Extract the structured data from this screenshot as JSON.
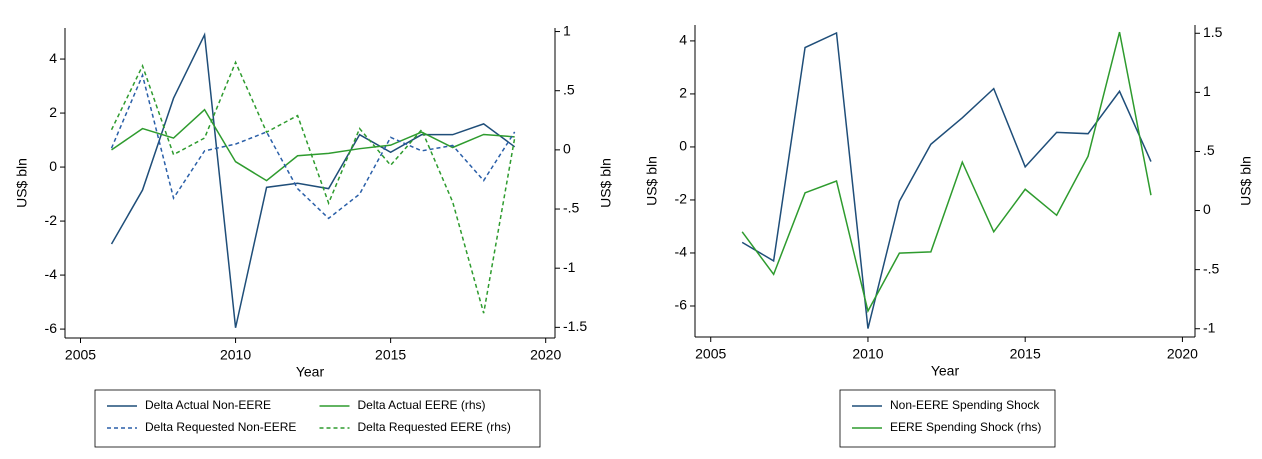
{
  "chart_data": [
    {
      "type": "line",
      "x_label": "Year",
      "y_label": "US$ bln",
      "y2_label": "US$ bln",
      "x": [
        2006,
        2007,
        2008,
        2009,
        2010,
        2011,
        2012,
        2013,
        2014,
        2015,
        2016,
        2017,
        2018,
        2019
      ],
      "xlim": [
        2004.5,
        2020.3
      ],
      "xticks": [
        2005,
        2010,
        2015,
        2020
      ],
      "ylim": [
        -6.33,
        5.15
      ],
      "yticks": [
        -6,
        -4,
        -2,
        0,
        2,
        4
      ],
      "y2lim": [
        -1.59,
        1.03
      ],
      "y2ticks": [
        {
          "value": -1.5,
          "label": "-1.5"
        },
        -1,
        {
          "value": -0.5,
          "label": "-.5"
        },
        0,
        {
          "value": 0.5,
          "label": ".5"
        },
        1
      ],
      "legend_columns": 2,
      "series": [
        {
          "name": "Delta Actual Non-EERE",
          "color": "#1f4e79",
          "dashed": false,
          "values": [
            -2.85,
            -0.85,
            2.55,
            4.9,
            -5.95,
            -0.75,
            -0.6,
            -0.8,
            1.2,
            0.55,
            1.2,
            1.2,
            1.6,
            0.75
          ]
        },
        {
          "name": "Delta Actual EERE (rhs)",
          "color": "#2e9b2e",
          "dashed": false,
          "axis": "y2",
          "values": [
            0.0,
            0.18,
            0.1,
            0.34,
            -0.1,
            -0.26,
            -0.05,
            -0.03,
            0.01,
            0.04,
            0.15,
            0.02,
            0.13,
            0.11
          ]
        },
        {
          "name": "Delta Requested Non-EERE",
          "color": "#2a5fa8",
          "dashed": true,
          "values": [
            0.7,
            3.4,
            -1.15,
            0.6,
            0.85,
            1.3,
            -0.8,
            -1.9,
            -1.0,
            1.1,
            0.6,
            0.8,
            -0.5,
            1.3
          ]
        },
        {
          "name": "Delta Requested EERE (rhs)",
          "color": "#2e9b2e",
          "dashed": true,
          "axis": "y2",
          "values": [
            0.17,
            0.71,
            -0.04,
            0.1,
            0.74,
            0.15,
            0.29,
            -0.45,
            0.18,
            -0.13,
            0.17,
            -0.44,
            -1.38,
            0.1
          ]
        }
      ]
    },
    {
      "type": "line",
      "x_label": "Year",
      "y_label": "US$ bln",
      "y2_label": "US$ bln",
      "x": [
        2006,
        2007,
        2008,
        2009,
        2010,
        2011,
        2012,
        2013,
        2014,
        2015,
        2016,
        2017,
        2018,
        2019
      ],
      "xlim": [
        2004.5,
        2020.4
      ],
      "xticks": [
        2005,
        2010,
        2015,
        2020
      ],
      "ylim": [
        -7.17,
        4.6
      ],
      "yticks": [
        -6,
        -4,
        -2,
        0,
        2,
        4
      ],
      "y2lim": [
        -1.07,
        1.57
      ],
      "y2ticks": [
        -1,
        {
          "value": -0.5,
          "label": "-.5"
        },
        0,
        {
          "value": 0.5,
          "label": ".5"
        },
        1,
        1.5
      ],
      "legend_columns": 1,
      "series": [
        {
          "name": "Non-EERE Spending Shock",
          "color": "#1f4e79",
          "dashed": false,
          "values": [
            -3.6,
            -4.3,
            3.75,
            4.3,
            -6.85,
            -2.05,
            0.1,
            1.1,
            2.2,
            -0.75,
            0.55,
            0.5,
            2.1,
            -0.55
          ]
        },
        {
          "name": "EERE Spending Shock (rhs)",
          "color": "#2e9b2e",
          "dashed": false,
          "axis": "y2",
          "values": [
            -0.18,
            -0.54,
            0.15,
            0.25,
            -0.85,
            -0.36,
            -0.35,
            0.41,
            -0.18,
            0.18,
            -0.04,
            0.46,
            1.51,
            0.13
          ]
        }
      ]
    }
  ]
}
